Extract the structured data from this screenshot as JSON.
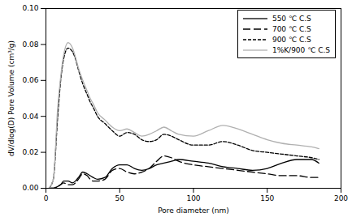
{
  "chart_data": {
    "type": "line",
    "xlabel": "Pore diameter (nm)",
    "ylabel": "dV/dlog(D) Pore Volume (cm³/g)",
    "x": [
      2,
      5,
      8,
      10,
      12,
      15,
      18,
      20,
      22,
      25,
      28,
      30,
      32,
      35,
      40,
      45,
      50,
      55,
      60,
      65,
      70,
      75,
      80,
      85,
      90,
      100,
      110,
      120,
      130,
      140,
      150,
      160,
      170,
      180,
      185
    ],
    "series": [
      {
        "name": "550 ℃ C.S",
        "color": "#000000",
        "line_style": "solid",
        "values": [
          0,
          0,
          0.001,
          0.002,
          0.004,
          0.004,
          0.003,
          0.004,
          0.006,
          0.009,
          0.008,
          0.007,
          0.006,
          0.005,
          0.006,
          0.011,
          0.013,
          0.013,
          0.011,
          0.01,
          0.011,
          0.013,
          0.014,
          0.015,
          0.016,
          0.015,
          0.014,
          0.012,
          0.011,
          0.01,
          0.011,
          0.014,
          0.016,
          0.016,
          0.014
        ]
      },
      {
        "name": "700 ℃ C.S",
        "color": "#000000",
        "line_style": "long-dash",
        "values": [
          0,
          0,
          0.001,
          0.002,
          0.003,
          0.002,
          0.002,
          0.003,
          0.005,
          0.008,
          0.007,
          0.005,
          0.004,
          0.004,
          0.005,
          0.01,
          0.011,
          0.009,
          0.008,
          0.009,
          0.011,
          0.015,
          0.018,
          0.017,
          0.015,
          0.013,
          0.012,
          0.011,
          0.01,
          0.009,
          0.008,
          0.007,
          0.007,
          0.006,
          0.006
        ]
      },
      {
        "name": "900 ℃ C.S",
        "color": "#000000",
        "line_style": "dash",
        "values": [
          0,
          0.005,
          0.04,
          0.06,
          0.072,
          0.078,
          0.076,
          0.072,
          0.066,
          0.058,
          0.052,
          0.048,
          0.045,
          0.04,
          0.036,
          0.032,
          0.029,
          0.031,
          0.03,
          0.027,
          0.026,
          0.027,
          0.03,
          0.029,
          0.027,
          0.024,
          0.024,
          0.026,
          0.024,
          0.021,
          0.02,
          0.019,
          0.018,
          0.017,
          0.016
        ]
      },
      {
        "name": "1%K/900 ℃ C.S",
        "color": "#b0b0b0",
        "line_style": "solid",
        "values": [
          0,
          0.005,
          0.045,
          0.062,
          0.074,
          0.081,
          0.078,
          0.073,
          0.067,
          0.06,
          0.054,
          0.05,
          0.047,
          0.042,
          0.038,
          0.034,
          0.032,
          0.033,
          0.031,
          0.029,
          0.03,
          0.032,
          0.034,
          0.032,
          0.03,
          0.029,
          0.032,
          0.035,
          0.033,
          0.03,
          0.027,
          0.025,
          0.024,
          0.023,
          0.022
        ]
      }
    ],
    "xlim": [
      0,
      200
    ],
    "xticks": [
      0,
      50,
      100,
      150,
      200
    ],
    "ylim": [
      0,
      0.1
    ],
    "yticks": [
      {
        "value": 0,
        "label": "0.00"
      },
      {
        "value": 0.02,
        "label": "0.02"
      },
      {
        "value": 0.04,
        "label": "0.04"
      },
      {
        "value": 0.06,
        "label": "0.06"
      },
      {
        "value": 0.08,
        "label": "0.08"
      },
      {
        "value": 0.1,
        "label": "0.10"
      }
    ],
    "legend": "top-right",
    "grid": false
  }
}
